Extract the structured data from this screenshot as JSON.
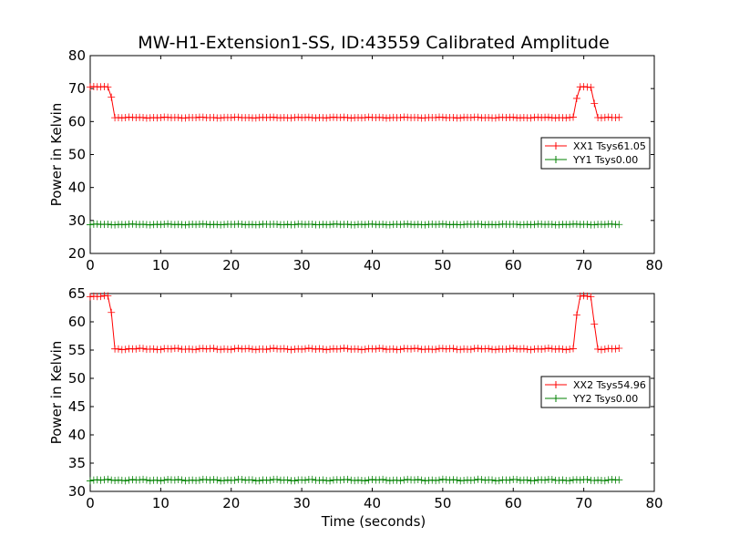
{
  "figure": {
    "title": "MW-H1-Extension1-SS, ID:43559 Calibrated Amplitude",
    "xlabel": "Time (seconds)"
  },
  "chart_data": [
    {
      "type": "line",
      "marker": "+",
      "ylabel": "Power in Kelvin",
      "xlim": [
        0,
        80
      ],
      "ylim": [
        20,
        80
      ],
      "xticks": [
        0,
        10,
        20,
        30,
        40,
        50,
        60,
        70,
        80
      ],
      "yticks": [
        20,
        30,
        40,
        50,
        60,
        70,
        80
      ],
      "grid": false,
      "legend_position": "right",
      "series": [
        {
          "name": "XX1 Tsys61.05",
          "color": "#ff0000",
          "x_range": [
            0,
            75
          ],
          "x_step": 0.5,
          "baseline": 61.2,
          "segments": [
            [
              0,
              70.5
            ],
            [
              2.5,
              70.5
            ],
            [
              3,
              67.5
            ],
            [
              3.5,
              61.2
            ],
            [
              68.5,
              61.2
            ],
            [
              69,
              67
            ],
            [
              69.5,
              70.5
            ],
            [
              71,
              70.5
            ],
            [
              71.5,
              65.5
            ],
            [
              72,
              61.2
            ],
            [
              75,
              61.2
            ]
          ]
        },
        {
          "name": "YY1 Tsys0.00",
          "color": "#008000",
          "x_range": [
            0,
            75
          ],
          "x_step": 0.5,
          "baseline": 28.8,
          "segments": [
            [
              0,
              28.8
            ],
            [
              75,
              28.8
            ]
          ]
        }
      ]
    },
    {
      "type": "line",
      "marker": "+",
      "ylabel": "Power in Kelvin",
      "xlim": [
        0,
        80
      ],
      "ylim": [
        30,
        65
      ],
      "xticks": [
        0,
        10,
        20,
        30,
        40,
        50,
        60,
        70,
        80
      ],
      "yticks": [
        30,
        35,
        40,
        45,
        50,
        55,
        60,
        65
      ],
      "grid": false,
      "legend_position": "right",
      "series": [
        {
          "name": "XX2 Tsys54.96",
          "color": "#ff0000",
          "x_range": [
            0,
            75
          ],
          "x_step": 0.5,
          "baseline": 55.2,
          "segments": [
            [
              0,
              64.5
            ],
            [
              2.5,
              64.5
            ],
            [
              3,
              61.7
            ],
            [
              3.5,
              55.2
            ],
            [
              68.5,
              55.2
            ],
            [
              69,
              61.2
            ],
            [
              69.5,
              64.5
            ],
            [
              71,
              64.5
            ],
            [
              71.5,
              59.6
            ],
            [
              72,
              55.2
            ],
            [
              75,
              55.2
            ]
          ]
        },
        {
          "name": "YY2 Tsys0.00",
          "color": "#008000",
          "x_range": [
            0,
            75
          ],
          "x_step": 0.5,
          "baseline": 32.0,
          "segments": [
            [
              0,
              32.0
            ],
            [
              75,
              32.0
            ]
          ]
        }
      ]
    }
  ]
}
